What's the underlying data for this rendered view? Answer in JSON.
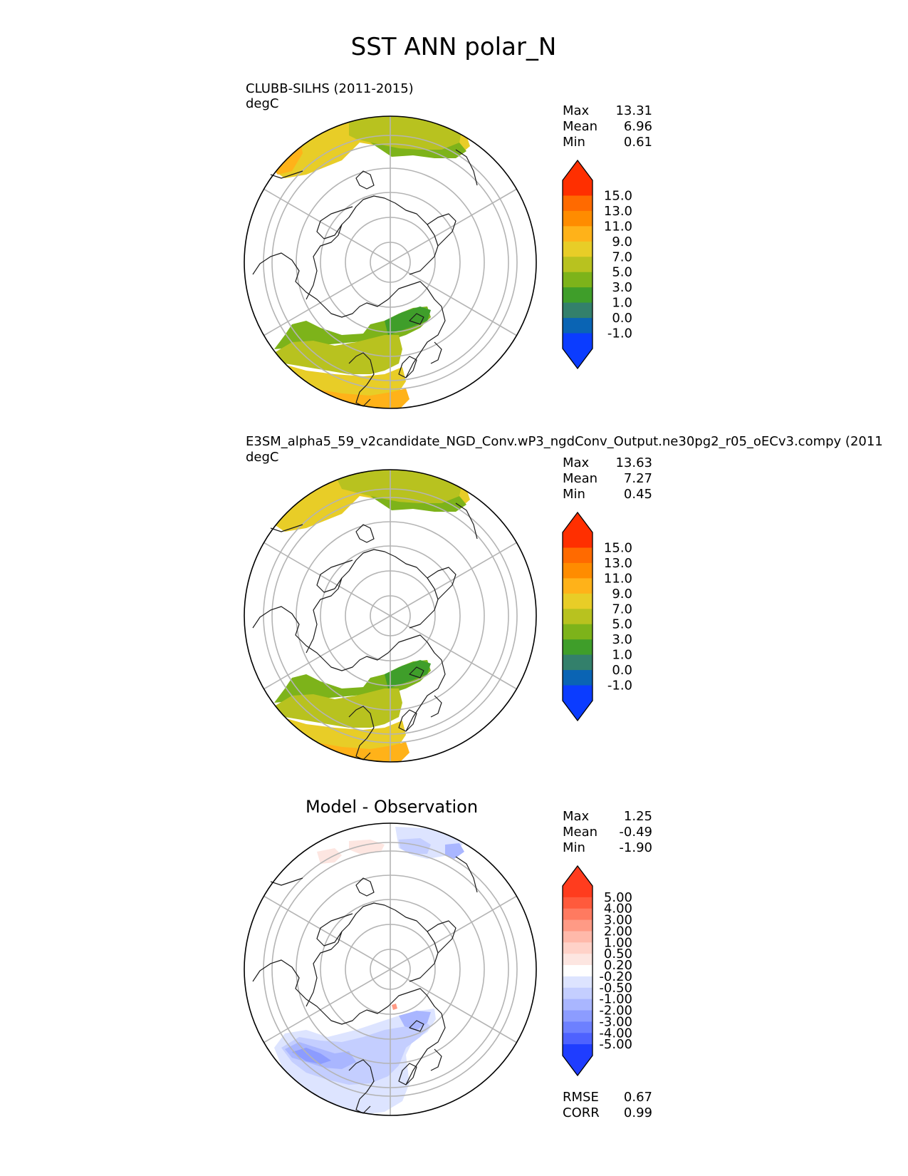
{
  "title": "SST ANN polar_N",
  "panels": [
    {
      "heading": "CLUBB-SILHS (2011-2015)",
      "units": "degC",
      "stats": [
        {
          "label": "Max",
          "value": "13.31"
        },
        {
          "label": "Mean",
          "value": "6.96"
        },
        {
          "label": "Min",
          "value": "0.61"
        }
      ],
      "colorbar": {
        "tick_labels": [
          "15.0",
          "13.0",
          "11.0",
          "9.0",
          "7.0",
          "5.0",
          "3.0",
          "1.0",
          "0.0",
          "-1.0"
        ],
        "colors": [
          "#ff2f00",
          "#ff6a00",
          "#ff8c00",
          "#ffb219",
          "#e8cd27",
          "#b8c21f",
          "#7db31a",
          "#3f9e2a",
          "#33806b",
          "#0a64b4",
          "#0b3cff"
        ],
        "top_color": "#ff2f00",
        "bottom_color": "#0b3cff"
      }
    },
    {
      "heading": "E3SM_alpha5_59_v2candidate_NGD_Conv.wP3_ngdConv_Output.ne30pg2_r05_oECv3.compy (2011",
      "units": "degC",
      "stats": [
        {
          "label": "Max",
          "value": "13.63"
        },
        {
          "label": "Mean",
          "value": "7.27"
        },
        {
          "label": "Min",
          "value": "0.45"
        }
      ],
      "colorbar": {
        "tick_labels": [
          "15.0",
          "13.0",
          "11.0",
          "9.0",
          "7.0",
          "5.0",
          "3.0",
          "1.0",
          "0.0",
          "-1.0"
        ],
        "colors": [
          "#ff2f00",
          "#ff6a00",
          "#ff8c00",
          "#ffb219",
          "#e8cd27",
          "#b8c21f",
          "#7db31a",
          "#3f9e2a",
          "#33806b",
          "#0a64b4",
          "#0b3cff"
        ],
        "top_color": "#ff2f00",
        "bottom_color": "#0b3cff"
      }
    },
    {
      "heading": "Model - Observation",
      "units": "",
      "stats": [
        {
          "label": "Max",
          "value": "1.25"
        },
        {
          "label": "Mean",
          "value": "-0.49"
        },
        {
          "label": "Min",
          "value": "-1.90"
        }
      ],
      "colorbar": {
        "tick_labels": [
          "5.00",
          "4.00",
          "3.00",
          "2.00",
          "1.00",
          "0.50",
          "0.20",
          "-0.20",
          "-0.50",
          "-1.00",
          "-2.00",
          "-3.00",
          "-4.00",
          "-5.00"
        ],
        "colors": [
          "#ff3c1e",
          "#ff5a3c",
          "#ff7a60",
          "#ff9a85",
          "#ffb9aa",
          "#ffd2c8",
          "#fde6e1",
          "#ffffff",
          "#dde4ff",
          "#c4ceff",
          "#a9b6ff",
          "#8c9cff",
          "#6d80ff",
          "#4e62ff",
          "#1f3dff"
        ],
        "top_color": "#ff3c1e",
        "bottom_color": "#1f3dff"
      },
      "extra_stats": [
        {
          "label": "RMSE",
          "value": "0.67"
        },
        {
          "label": "CORR",
          "value": "0.99"
        }
      ]
    }
  ]
}
